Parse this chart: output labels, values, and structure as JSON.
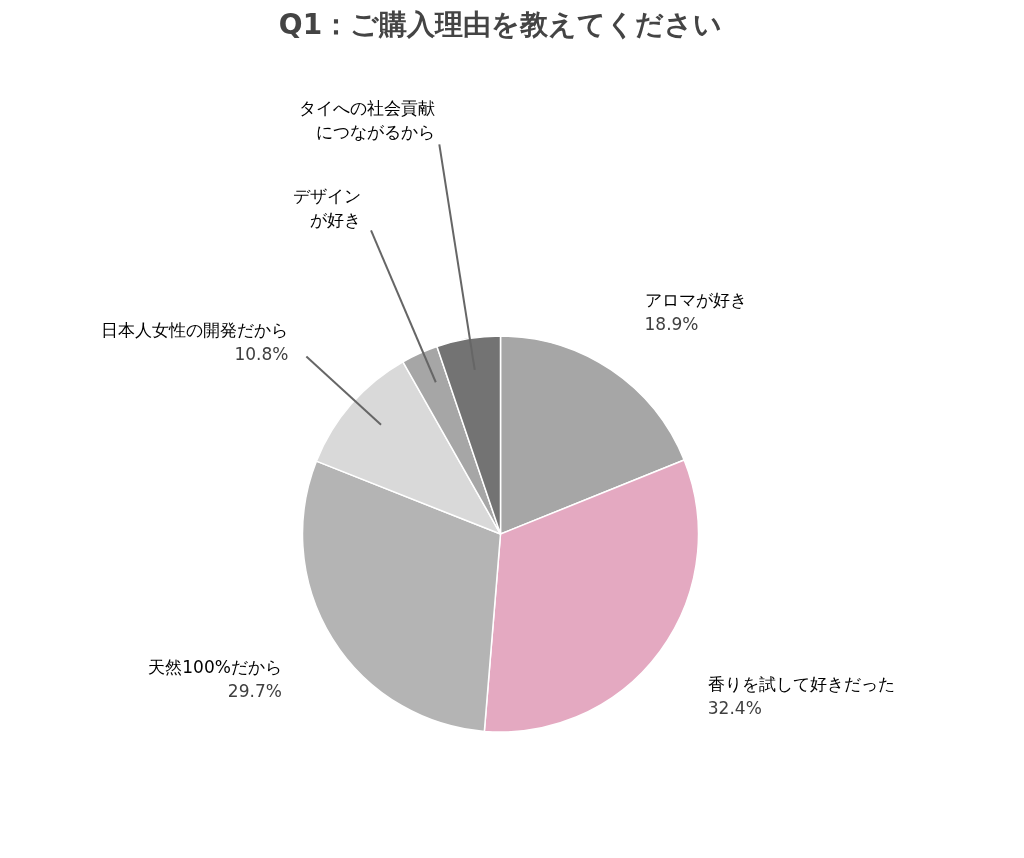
{
  "chart_data": {
    "type": "pie",
    "title": "Q1：ご購入理由を教えてください",
    "categories": [
      "アロマが好き",
      "香りを試して好きだった",
      "天然100%だから",
      "日本人女性の開発だから",
      "デザインが好き",
      "タイへの社会貢献につながるから"
    ],
    "values": [
      18.9,
      32.4,
      29.7,
      10.8,
      3.0,
      5.2
    ],
    "colors": [
      "#a6a6a6",
      "#e4a9c1",
      "#b4b4b4",
      "#d9d9d9",
      "#a6a6a6",
      "#737373"
    ],
    "value_labels": [
      "18.9%",
      "32.4%",
      "29.7%",
      "10.8%",
      null,
      null
    ]
  }
}
